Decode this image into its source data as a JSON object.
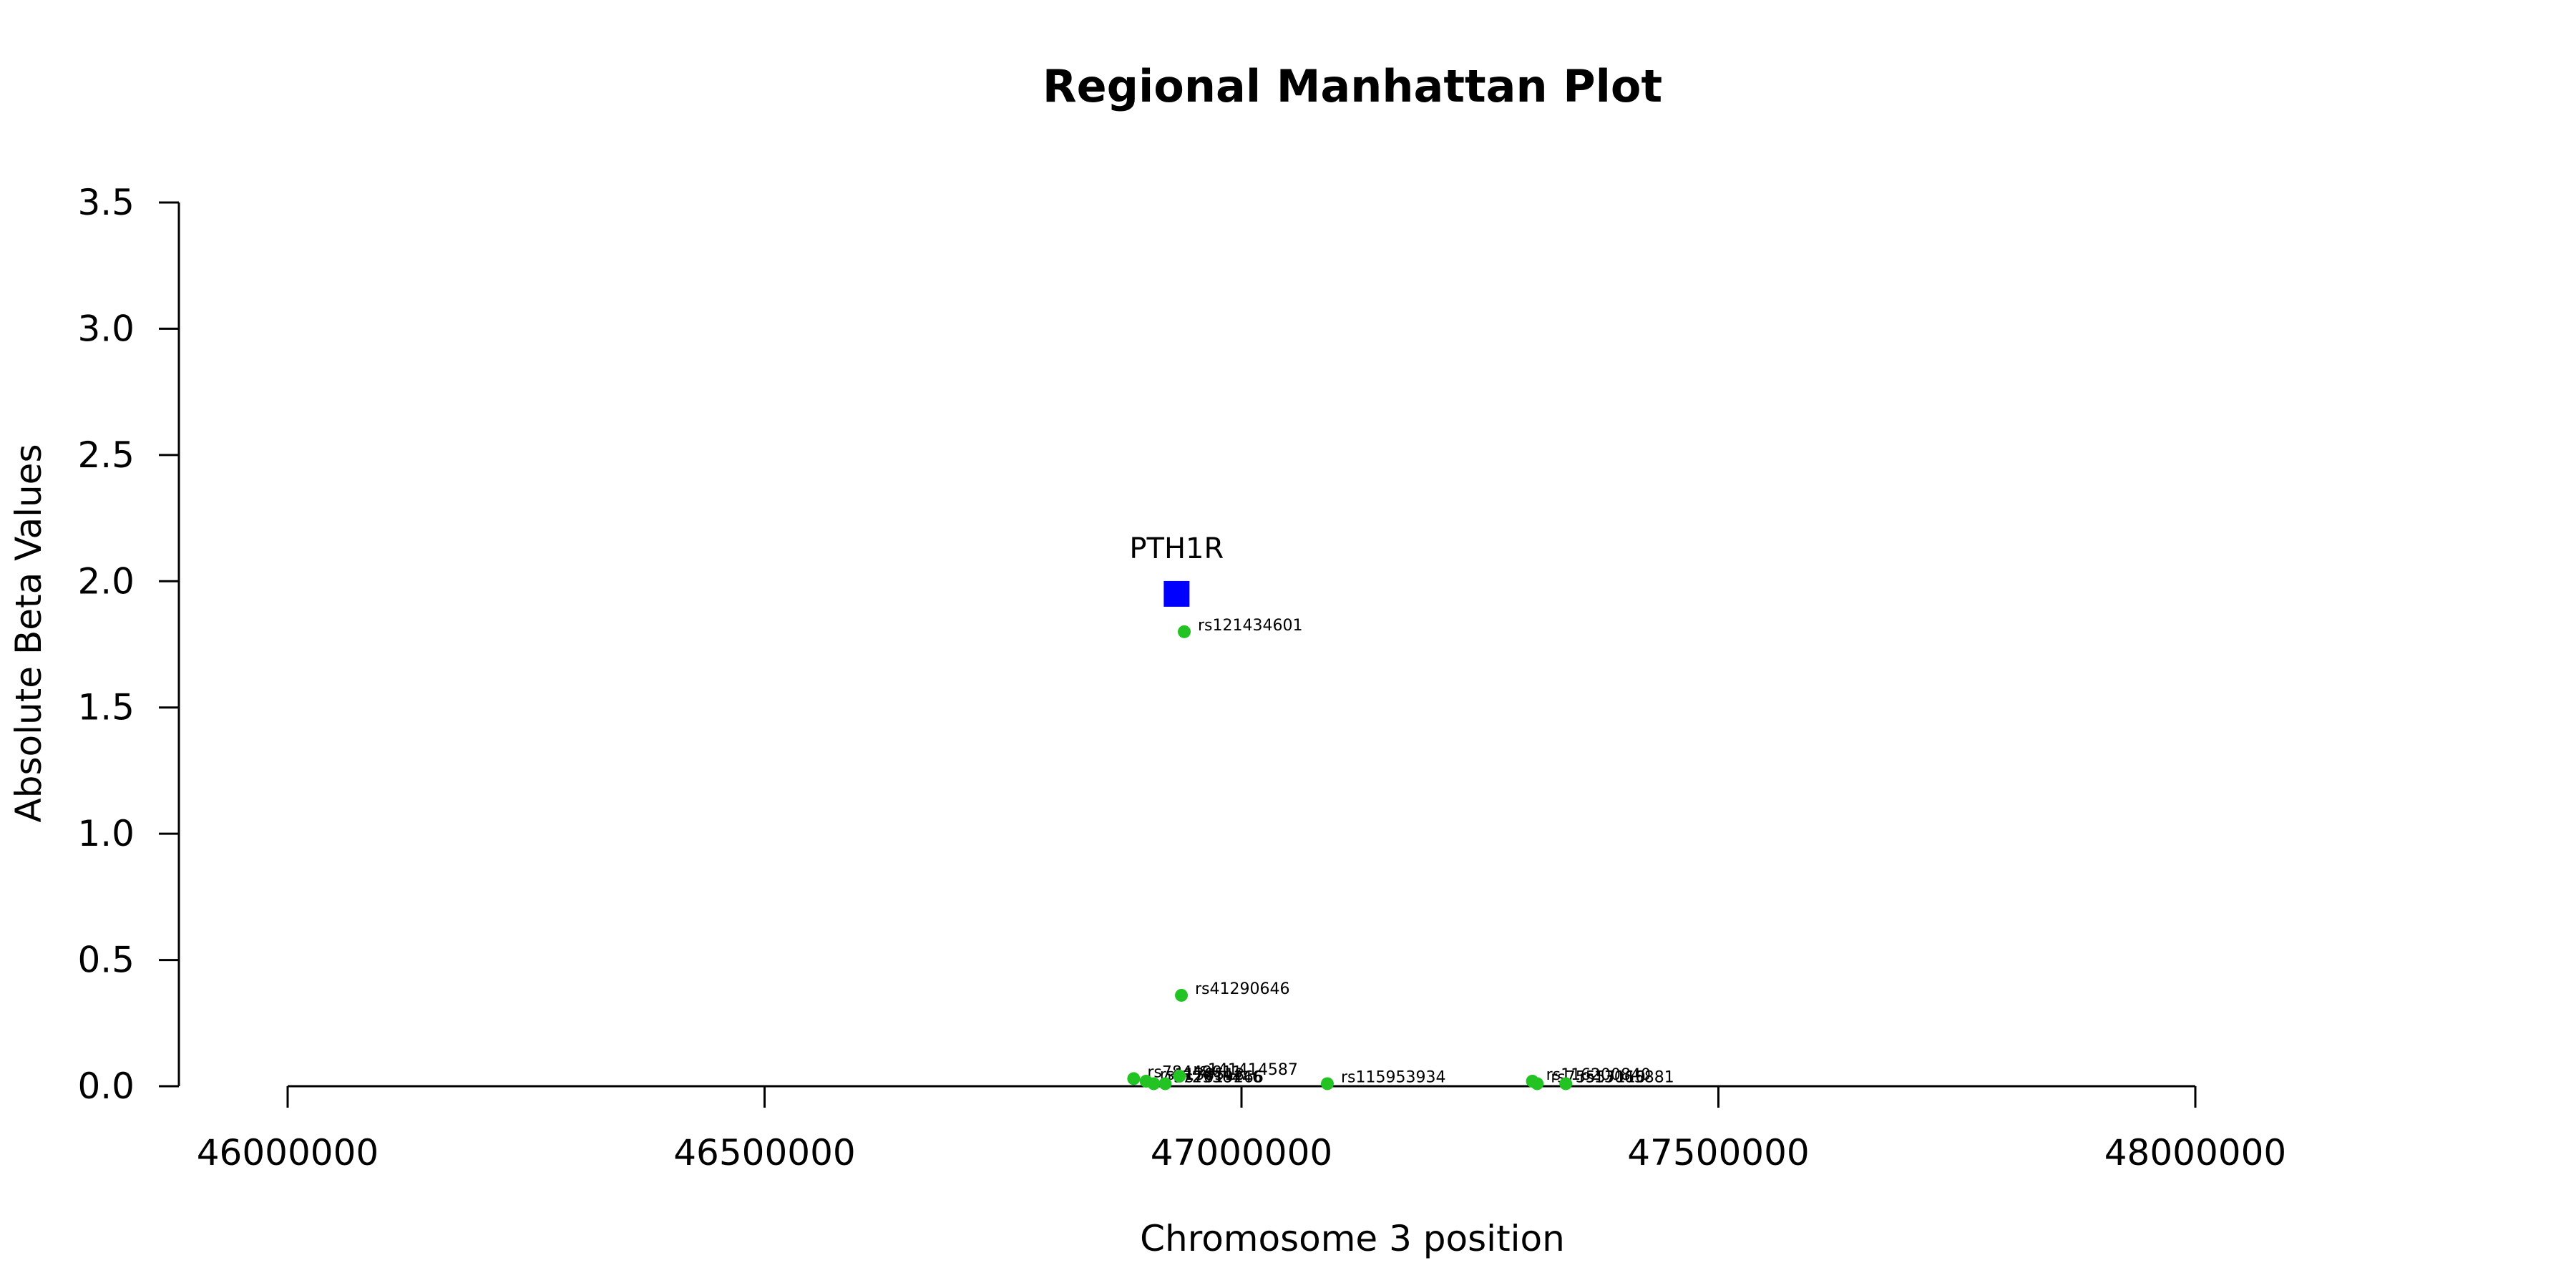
{
  "chart_data": {
    "type": "scatter",
    "title": "Regional Manhattan Plot",
    "xlabel": "Chromosome 3 position",
    "ylabel": "Absolute Beta Values",
    "xlim": [
      46000000,
      48000000
    ],
    "ylim": [
      0,
      3.5
    ],
    "x_ticks": [
      46000000,
      46500000,
      47000000,
      47500000,
      48000000
    ],
    "x_tick_labels": [
      "46000000",
      "46500000",
      "47000000",
      "47500000",
      "48000000"
    ],
    "y_ticks": [
      0.0,
      0.5,
      1.0,
      1.5,
      2.0,
      2.5,
      3.0,
      3.5
    ],
    "y_tick_labels": [
      "0.0",
      "0.5",
      "1.0",
      "1.5",
      "2.0",
      "2.5",
      "3.0",
      "3.5"
    ],
    "grid": false,
    "colors": {
      "gene": "#0000ff",
      "snp": "#22c322",
      "axis": "#000000"
    },
    "gene": {
      "name": "PTH1R",
      "x": 46932000,
      "y": 1.95
    },
    "snps": [
      {
        "label": "rs121434601",
        "x": 46940000,
        "y": 1.8
      },
      {
        "label": "rs41290646",
        "x": 46937000,
        "y": 0.36
      },
      {
        "label": "rs78449011",
        "x": 46887000,
        "y": 0.03
      },
      {
        "label": "rs1138518",
        "x": 46900000,
        "y": 0.02
      },
      {
        "label": "rs72936446",
        "x": 46908000,
        "y": 0.01
      },
      {
        "label": "rs7619266",
        "x": 46920000,
        "y": 0.01
      },
      {
        "label": "rs141414587",
        "x": 46935000,
        "y": 0.04
      },
      {
        "label": "rs115953934",
        "x": 47090000,
        "y": 0.01
      },
      {
        "label": "rs116200840",
        "x": 47305000,
        "y": 0.02
      },
      {
        "label": "rs75557110",
        "x": 47310000,
        "y": 0.01
      },
      {
        "label": "rs13065881",
        "x": 47340000,
        "y": 0.01
      }
    ]
  }
}
